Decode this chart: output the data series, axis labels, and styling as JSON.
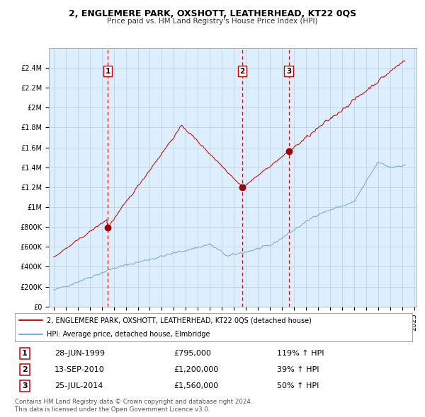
{
  "title": "2, ENGLEMERE PARK, OXSHOTT, LEATHERHEAD, KT22 0QS",
  "subtitle": "Price paid vs. HM Land Registry's House Price Index (HPI)",
  "legend_line1": "2, ENGLEMERE PARK, OXSHOTT, LEATHERHEAD, KT22 0QS (detached house)",
  "legend_line2": "HPI: Average price, detached house, Elmbridge",
  "footer1": "Contains HM Land Registry data © Crown copyright and database right 2024.",
  "footer2": "This data is licensed under the Open Government Licence v3.0.",
  "sales": [
    {
      "label": "1",
      "date": 1999.49,
      "price": 795000,
      "x_label": "28-JUN-1999",
      "price_label": "£795,000",
      "pct_label": "119% ↑ HPI"
    },
    {
      "label": "2",
      "date": 2010.71,
      "price": 1200000,
      "x_label": "13-SEP-2010",
      "price_label": "£1,200,000",
      "pct_label": "39% ↑ HPI"
    },
    {
      "label": "3",
      "date": 2014.56,
      "price": 1560000,
      "x_label": "25-JUL-2014",
      "price_label": "£1,560,000",
      "pct_label": "50% ↑ HPI"
    }
  ],
  "hpi_color": "#7bafd4",
  "price_color": "#cc1111",
  "sale_marker_color": "#990000",
  "dashed_line_color": "#cc0000",
  "background_color": "#ffffff",
  "chart_bg_color": "#ddeeff",
  "grid_color": "#bbccdd",
  "ylim": [
    0,
    2600000
  ],
  "yticks": [
    0,
    200000,
    400000,
    600000,
    800000,
    1000000,
    1200000,
    1400000,
    1600000,
    1800000,
    2000000,
    2200000,
    2400000
  ],
  "ytick_labels": [
    "£0",
    "£200K",
    "£400K",
    "£600K",
    "£800K",
    "£1M",
    "£1.2M",
    "£1.4M",
    "£1.6M",
    "£1.8M",
    "£2M",
    "£2.2M",
    "£2.4M"
  ],
  "xlim_start": 1994.6,
  "xlim_end": 2025.2
}
